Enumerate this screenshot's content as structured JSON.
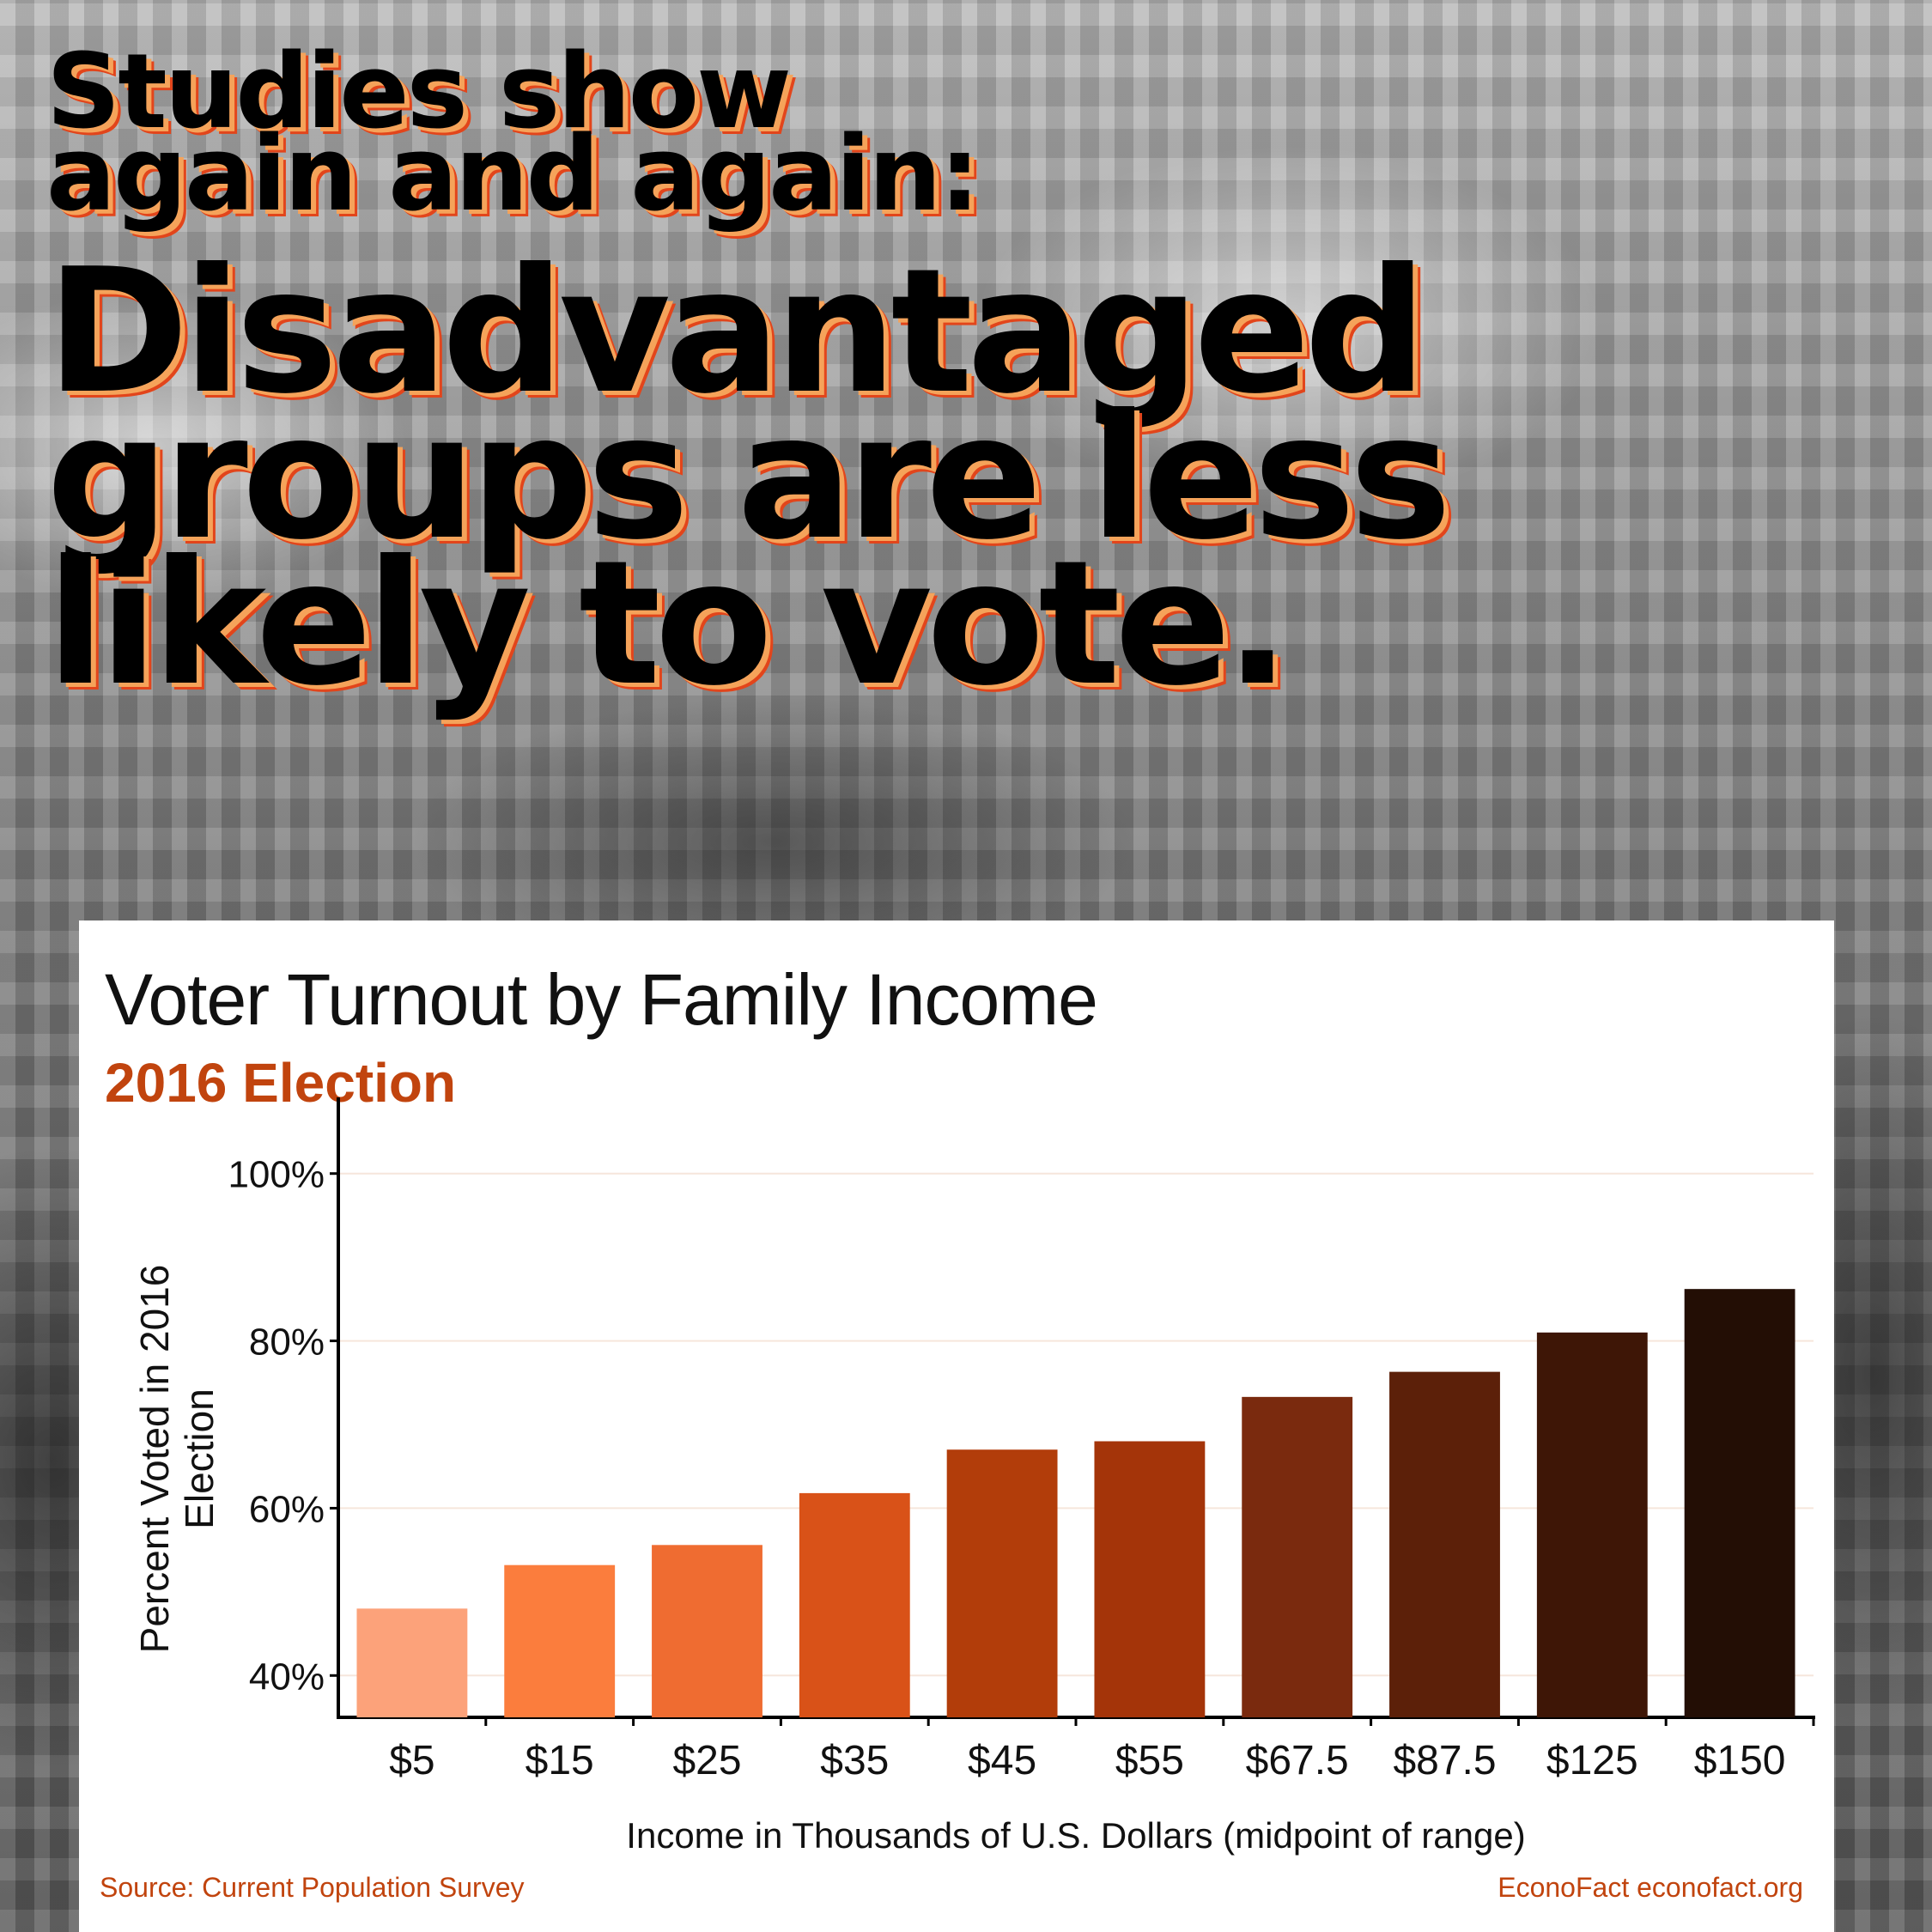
{
  "headline": {
    "line1": "Studies show",
    "line2": "again and again:",
    "line3": "Disadvantaged",
    "line4": "groups are less",
    "line5": "likely to vote."
  },
  "chart_data": {
    "type": "bar",
    "title": "Voter Turnout by Family Income",
    "subtitle": "2016 Election",
    "categories": [
      "$5",
      "$15",
      "$25",
      "$35",
      "$45",
      "$55",
      "$67.5",
      "$87.5",
      "$125",
      "$150"
    ],
    "values": [
      48,
      53.2,
      55.6,
      61.8,
      67,
      68,
      73.3,
      76.3,
      81,
      86.2
    ],
    "bar_colors": [
      "#fca27a",
      "#fb7d3d",
      "#ef6c31",
      "#d95218",
      "#b23d0a",
      "#a43409",
      "#7a2a0e",
      "#5c2009",
      "#3e1606",
      "#230e05"
    ],
    "xlabel": "Income in Thousands of U.S. Dollars (midpoint of range)",
    "ylabel_lines": [
      "Percent Voted in 2016",
      "Election"
    ],
    "ylim": [
      35,
      105
    ],
    "yticks": [
      40,
      60,
      80,
      100
    ],
    "ytick_labels": [
      "40%",
      "60%",
      "80%",
      "100%"
    ],
    "grid": true,
    "legend": "none"
  },
  "footer": {
    "source": "Source: Current Population Survey",
    "brand": "EconoFact  econofact.org"
  }
}
